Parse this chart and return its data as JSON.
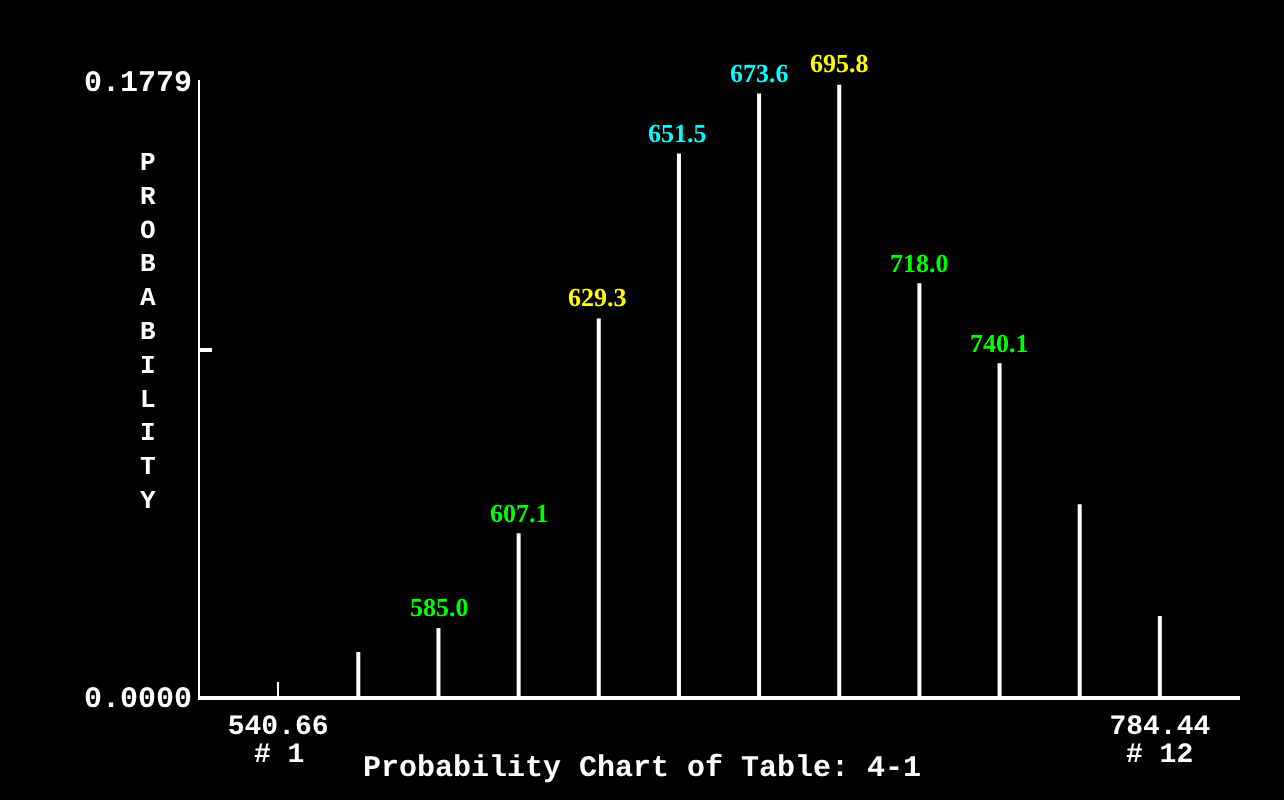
{
  "chart_data": {
    "type": "bar",
    "title": "Probability Chart of Table: 4-1",
    "ylabel": "PROBABILITY",
    "x": [
      540.66,
      562.82,
      584.98,
      607.15,
      629.31,
      651.47,
      673.63,
      695.79,
      717.95,
      740.12,
      762.28,
      784.44
    ],
    "values": [
      0,
      0.0127,
      0.0196,
      0.047,
      0.109,
      0.1567,
      0.174,
      0.1765,
      0.1192,
      0.0961,
      0.0554,
      0.0231
    ],
    "color": "#ffffff",
    "xlim": [
      519.05,
      806.6
    ],
    "xticks": [
      540.66,
      {
        "value": 562.82,
        "label": null
      },
      {
        "value": 584.98,
        "label": null
      },
      {
        "value": 607.15,
        "label": null
      },
      {
        "value": 629.31,
        "label": null
      },
      {
        "value": 651.47,
        "label": null
      },
      {
        "value": 673.63,
        "label": null
      },
      {
        "value": 695.79,
        "label": null
      },
      {
        "value": 717.95,
        "label": null
      },
      {
        "value": 740.12,
        "label": null
      },
      {
        "value": 762.28,
        "label": null
      },
      784.44
    ],
    "ylim": [
      0,
      0.1779
    ],
    "yticks": [
      {
        "value": 0,
        "label": "0.0000"
      },
      {
        "value": 0.1,
        "label": null
      },
      0.1779
    ],
    "annotations": [
      {
        "text": "585.0",
        "x": 584.98,
        "y": 0.0196
      },
      {
        "text": "607.1",
        "x": 607.15,
        "y": 0.047
      },
      {
        "text": "629.3",
        "x": 629.31,
        "y": 0.109
      },
      {
        "text": "651.5",
        "x": 651.47,
        "y": 0.1567
      },
      {
        "text": "673.6",
        "x": 673.63,
        "y": 0.174
      },
      {
        "text": "695.8",
        "x": 695.79,
        "y": 0.1765
      },
      {
        "text": "718.0",
        "x": 717.95,
        "y": 0.1192
      },
      {
        "text": "740.1",
        "x": 740.12,
        "y": 0.0961
      },
      {
        "text": "# 1",
        "x": 540.66,
        "y": 0
      },
      {
        "text": "# 12",
        "x": 784.44,
        "y": 0
      }
    ],
    "grid": false
  }
}
